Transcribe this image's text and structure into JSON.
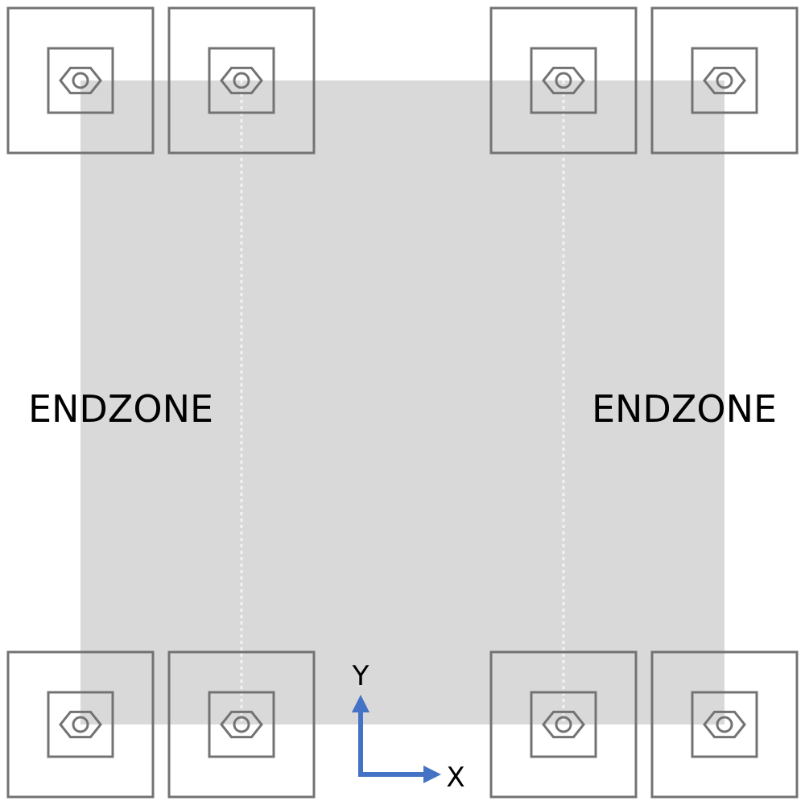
{
  "colors": {
    "field": "#d9d9d9",
    "outline": "#737373",
    "divider": "#f2f2f2",
    "axis": "#4472c4",
    "text": "#000000"
  },
  "field": {
    "left_endzone_label": "ENDZONE",
    "right_endzone_label": "ENDZONE"
  },
  "axes": {
    "x_label": "X",
    "y_label": "Y"
  },
  "mounts": {
    "count": 8,
    "icon": "hex-nut-icon"
  }
}
